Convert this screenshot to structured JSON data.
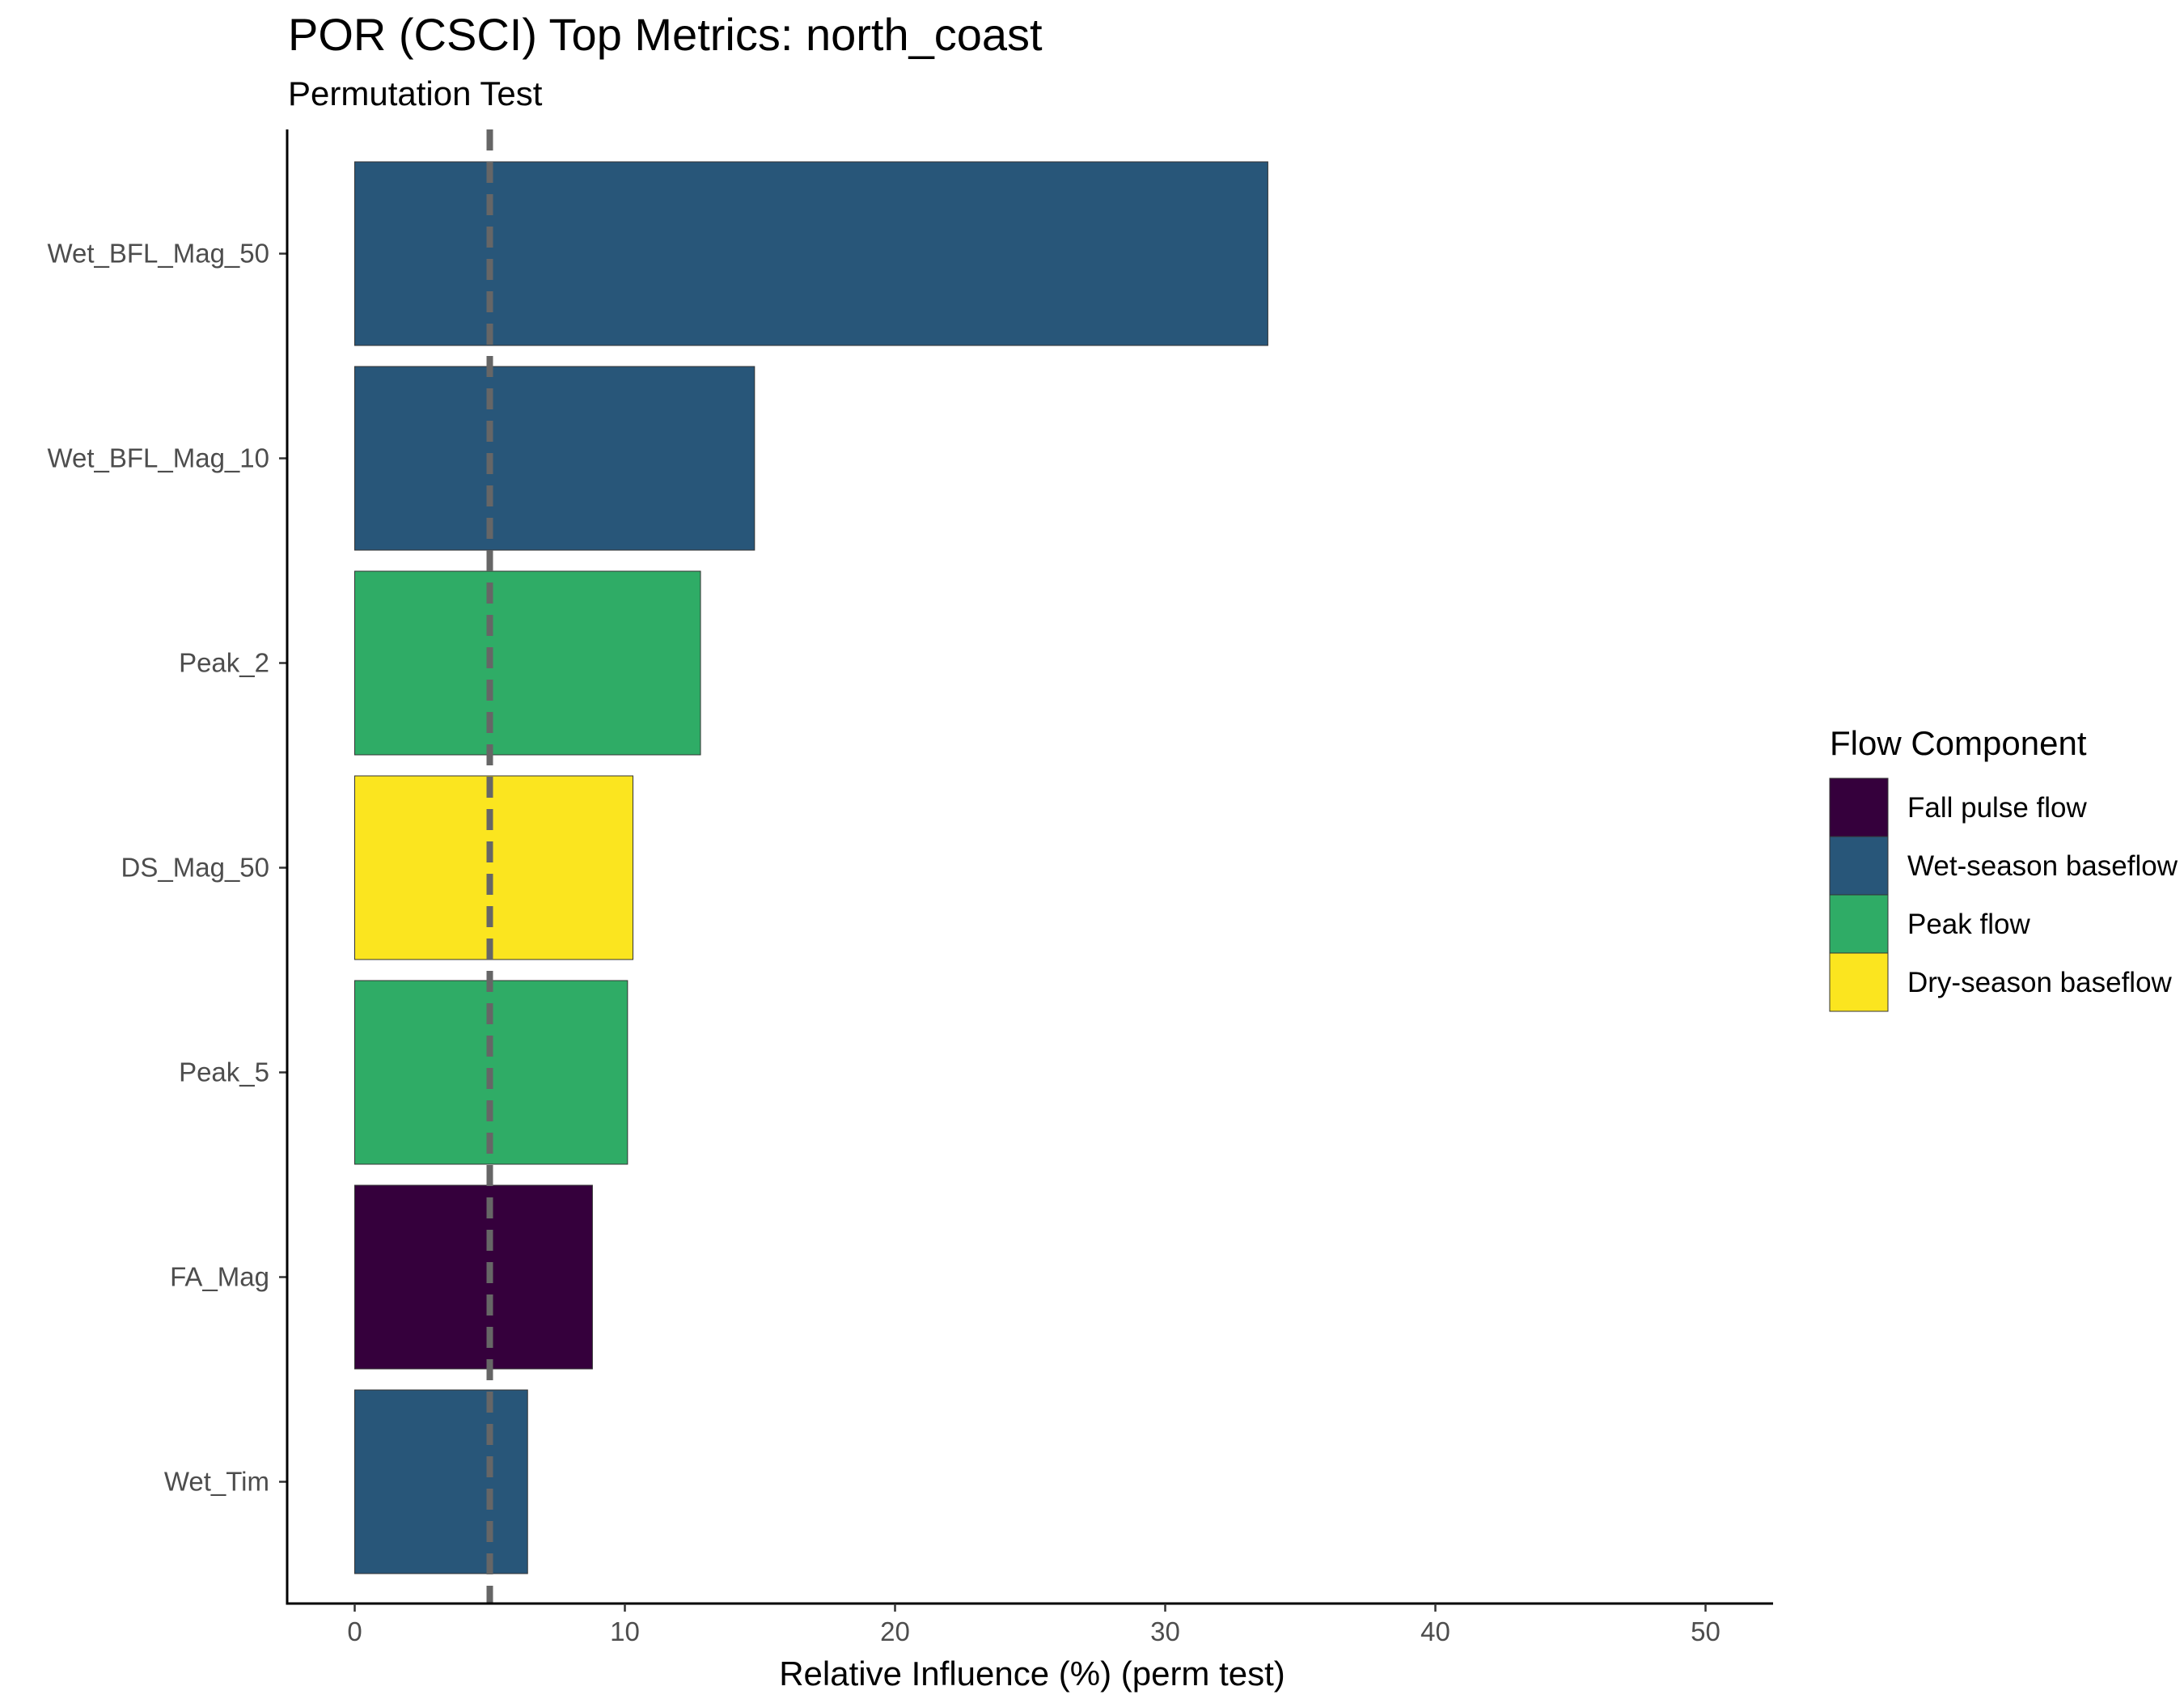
{
  "chart_data": {
    "type": "bar",
    "orientation": "horizontal",
    "title": "POR (CSCI) Top Metrics: north_coast",
    "subtitle": "Permutation Test",
    "xlabel": "Relative Influence (%) (perm test)",
    "ylabel": "",
    "xlim": [
      -2.5,
      52.5
    ],
    "xticks": [
      0,
      10,
      20,
      30,
      40,
      50
    ],
    "reference_line": {
      "x": 5,
      "style": "dashed",
      "color": "#666666"
    },
    "grid": false,
    "categories": [
      "Wet_BFL_Mag_50",
      "Wet_BFL_Mag_10",
      "Peak_2",
      "DS_Mag_50",
      "Peak_5",
      "FA_Mag",
      "Wet_Tim"
    ],
    "values": [
      33.8,
      14.8,
      12.8,
      10.3,
      10.1,
      8.8,
      6.4
    ],
    "groups": [
      "Wet-season baseflow",
      "Wet-season baseflow",
      "Peak flow",
      "Dry-season baseflow",
      "Peak flow",
      "Fall pulse flow",
      "Wet-season baseflow"
    ],
    "legend": {
      "title": "Flow Component",
      "position": "right",
      "entries": [
        {
          "label": "Fall pulse flow",
          "color": "#35003C"
        },
        {
          "label": "Wet-season baseflow",
          "color": "#285679"
        },
        {
          "label": "Peak flow",
          "color": "#2FAC66"
        },
        {
          "label": "Dry-season baseflow",
          "color": "#FBE51F"
        }
      ]
    }
  }
}
